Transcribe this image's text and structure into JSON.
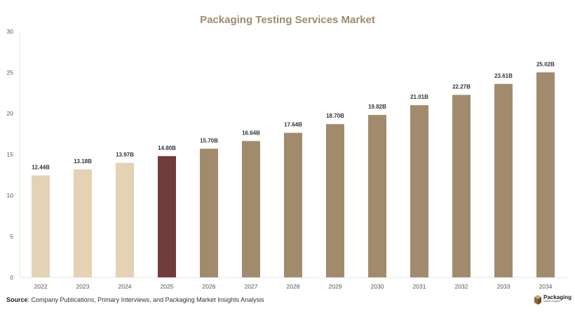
{
  "chart_data": {
    "type": "bar",
    "title": "Packaging Testing Services Market",
    "categories": [
      "2022",
      "2023",
      "2024",
      "2025",
      "2026",
      "2027",
      "2028",
      "2029",
      "2030",
      "2031",
      "2032",
      "2033",
      "2034"
    ],
    "values": [
      12.44,
      13.18,
      13.97,
      14.8,
      15.7,
      16.64,
      17.64,
      18.7,
      19.82,
      21.01,
      22.27,
      23.61,
      25.02
    ],
    "data_labels": [
      "12.44B",
      "13.18B",
      "13.97B",
      "14.80B",
      "15.70B",
      "16.64B",
      "17.64B",
      "18.70B",
      "19.82B",
      "21.01B",
      "22.27B",
      "23.61B",
      "25.02B"
    ],
    "bar_colors": [
      "#e3d2b4",
      "#e3d2b4",
      "#e3d2b4",
      "#733c3c",
      "#a28b6d",
      "#a28b6d",
      "#a28b6d",
      "#a28b6d",
      "#a28b6d",
      "#a28b6d",
      "#a28b6d",
      "#a28b6d",
      "#a28b6d"
    ],
    "ylim": [
      0,
      30
    ],
    "yticks": [
      0,
      5,
      10,
      15,
      20,
      25,
      30
    ],
    "xlabel": "",
    "ylabel": "",
    "grid": false,
    "legend": "none"
  },
  "source": {
    "label": "Source",
    "text": ": Company Publications, Primary Interviews, and Packaging Market Insights Analysis"
  },
  "logo": {
    "name": "Packaging",
    "tagline": "Market Insights"
  },
  "colors": {
    "title": "#a08a6c",
    "historical": "#e3d2b4",
    "base_year": "#733c3c",
    "forecast": "#a28b6d"
  }
}
